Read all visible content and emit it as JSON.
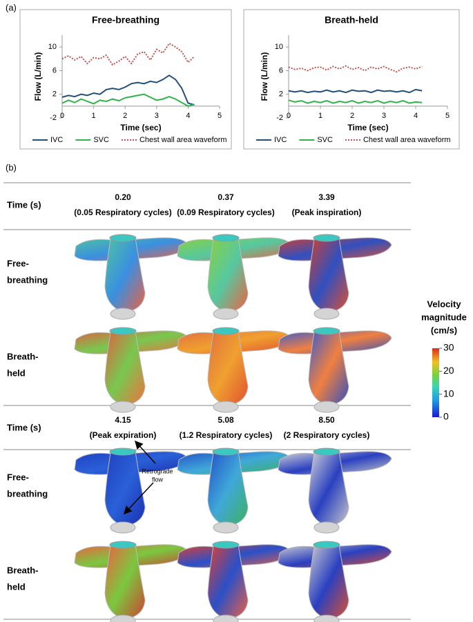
{
  "panel_labels": [
    "(a)",
    "(b)"
  ],
  "chart_data": [
    {
      "type": "line",
      "title": "Free-breathing",
      "x_label": "Time (sec)",
      "y_label": "Flow (L/min)",
      "x": [
        0,
        0.2,
        0.4,
        0.6,
        0.8,
        1.0,
        1.2,
        1.4,
        1.6,
        1.8,
        2.0,
        2.2,
        2.4,
        2.6,
        2.8,
        3.0,
        3.2,
        3.4,
        3.6,
        3.8,
        4.0,
        4.2
      ],
      "xlim": [
        0,
        5
      ],
      "xticks": [
        0,
        1,
        2,
        3,
        4,
        5
      ],
      "ylim": [
        -2,
        12
      ],
      "yticks": [
        -2,
        2,
        6,
        10
      ],
      "legend": "bottom",
      "series": [
        {
          "name": "IVC",
          "color": "#1f4e79",
          "style": "solid",
          "values": [
            1.5,
            1.8,
            1.6,
            2.0,
            1.8,
            2.2,
            2.0,
            2.8,
            3.0,
            2.8,
            3.2,
            3.8,
            4.0,
            3.8,
            4.2,
            4.0,
            4.5,
            5.2,
            4.5,
            3.0,
            0.5,
            0.2
          ]
        },
        {
          "name": "SVC",
          "color": "#2db34a",
          "style": "solid",
          "values": [
            0.5,
            1.0,
            0.6,
            1.2,
            0.8,
            0.4,
            1.0,
            0.8,
            1.2,
            0.9,
            1.4,
            1.6,
            1.8,
            2.0,
            1.5,
            1.0,
            1.2,
            1.6,
            1.2,
            0.6,
            0.0,
            0.3
          ]
        },
        {
          "name": "Chest wall area waveform",
          "color": "#c0504d",
          "style": "dotted",
          "values": [
            8.0,
            8.5,
            7.8,
            8.4,
            7.2,
            8.2,
            8.0,
            8.6,
            7.0,
            7.6,
            8.4,
            7.2,
            8.8,
            9.2,
            7.8,
            9.6,
            9.0,
            10.6,
            10.0,
            9.2,
            7.4,
            8.4
          ]
        }
      ]
    },
    {
      "type": "line",
      "title": "Breath-held",
      "x_label": "Time (sec)",
      "y_label": "Flow (L/min)",
      "x": [
        0,
        0.2,
        0.4,
        0.6,
        0.8,
        1.0,
        1.2,
        1.4,
        1.6,
        1.8,
        2.0,
        2.2,
        2.4,
        2.6,
        2.8,
        3.0,
        3.2,
        3.4,
        3.6,
        3.8,
        4.0,
        4.2
      ],
      "xlim": [
        0,
        5
      ],
      "xticks": [
        0,
        1,
        2,
        3,
        4,
        5
      ],
      "ylim": [
        -2,
        12
      ],
      "yticks": [
        -2,
        2,
        6,
        10
      ],
      "legend": "bottom",
      "series": [
        {
          "name": "IVC",
          "color": "#1f4e79",
          "style": "solid",
          "values": [
            2.6,
            2.4,
            2.6,
            2.3,
            2.5,
            2.4,
            2.7,
            2.4,
            2.6,
            2.3,
            2.7,
            2.5,
            2.6,
            2.3,
            2.7,
            2.5,
            2.6,
            2.4,
            2.6,
            2.3,
            2.8,
            2.6
          ]
        },
        {
          "name": "SVC",
          "color": "#2db34a",
          "style": "solid",
          "values": [
            1.0,
            0.7,
            0.9,
            0.5,
            0.8,
            0.6,
            0.9,
            0.5,
            0.8,
            0.6,
            0.9,
            0.5,
            0.8,
            0.6,
            0.9,
            0.5,
            0.8,
            0.6,
            0.9,
            0.5,
            0.7,
            0.6
          ]
        },
        {
          "name": "Chest wall area waveform",
          "color": "#c0504d",
          "style": "dotted",
          "values": [
            6.6,
            6.2,
            6.4,
            6.0,
            6.5,
            6.6,
            6.1,
            6.7,
            6.3,
            6.8,
            6.2,
            6.5,
            6.0,
            6.6,
            6.3,
            6.7,
            6.2,
            5.8,
            6.4,
            6.6,
            6.3,
            6.7
          ]
        }
      ]
    }
  ],
  "table": {
    "groups": [
      {
        "time_label": "Time (s)",
        "columns": [
          {
            "time": "0.20",
            "note": "(0.05 Respiratory cycles)"
          },
          {
            "time": "0.37",
            "note": "(0.09 Respiratory cycles)"
          },
          {
            "time": "3.39",
            "note": "(Peak inspiration)"
          }
        ],
        "rows": [
          [
            "Free-",
            "breathing"
          ],
          [
            "Breath-",
            "held"
          ]
        ]
      },
      {
        "time_label": "Time (s)",
        "columns": [
          {
            "time": "4.15",
            "note": "(Peak expiration)"
          },
          {
            "time": "5.08",
            "note": "(1.2 Respiratory cycles)"
          },
          {
            "time": "8.50",
            "note": "(2 Respiratory cycles)"
          }
        ],
        "rows": [
          [
            "Free-",
            "breathing"
          ],
          [
            "Breath-",
            "held"
          ]
        ],
        "annotation": [
          "Retrograde",
          "flow"
        ]
      }
    ]
  },
  "colorbar": {
    "title": [
      "Velocity",
      "magnitude",
      "(cm/s)"
    ],
    "range": [
      0,
      30
    ],
    "ticks": [
      30,
      20,
      10,
      0
    ]
  }
}
